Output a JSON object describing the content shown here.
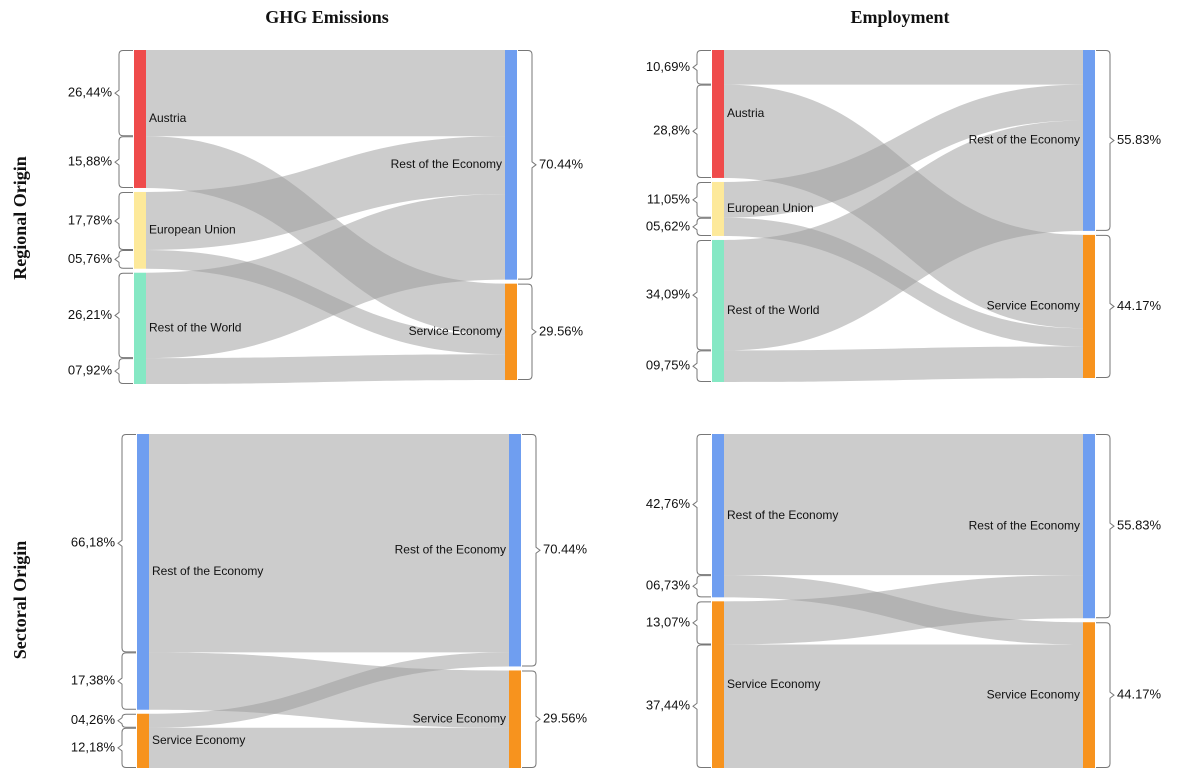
{
  "column_titles": [
    "GHG Emissions",
    "Employment"
  ],
  "row_titles": [
    "Regional Origin",
    "Sectoral Origin"
  ],
  "chart_data": [
    {
      "type": "sankey",
      "left_nodes": [
        "Austria",
        "European Union",
        "Rest of the World"
      ],
      "left_colors": [
        "#ef4b4b",
        "#fde99a",
        "#85e8c4"
      ],
      "right_nodes": [
        "Rest of the Economy",
        "Service Economy"
      ],
      "right_colors": [
        "#6f9ef0",
        "#f7931e"
      ],
      "sources": [
        0,
        0,
        1,
        1,
        2,
        2
      ],
      "targets": [
        0,
        1,
        0,
        1,
        0,
        1
      ],
      "values": [
        26.44,
        15.88,
        17.78,
        5.76,
        26.21,
        7.92
      ],
      "value_labels": [
        "26,44%",
        "15,88%",
        "17,78%",
        "05,76%",
        "26,21%",
        "07,92%"
      ],
      "right_values": [
        70.44,
        29.56
      ],
      "right_value_labels": [
        "70.44%",
        "29.56%"
      ],
      "flow_color": "#999999"
    },
    {
      "type": "sankey",
      "left_nodes": [
        "Austria",
        "European Union",
        "Rest of the World"
      ],
      "left_colors": [
        "#ef4b4b",
        "#fde99a",
        "#85e8c4"
      ],
      "right_nodes": [
        "Rest of the Economy",
        "Service Economy"
      ],
      "right_colors": [
        "#6f9ef0",
        "#f7931e"
      ],
      "sources": [
        0,
        0,
        1,
        1,
        2,
        2
      ],
      "targets": [
        0,
        1,
        0,
        1,
        0,
        1
      ],
      "values": [
        10.69,
        28.8,
        11.05,
        5.62,
        34.09,
        9.75
      ],
      "value_labels": [
        "10,69%",
        "28,8%",
        "11,05%",
        "05,62%",
        "34,09%",
        "09,75%"
      ],
      "right_values": [
        55.83,
        44.17
      ],
      "right_value_labels": [
        "55.83%",
        "44.17%"
      ],
      "flow_color": "#999999"
    },
    {
      "type": "sankey",
      "left_nodes": [
        "Rest of the Economy",
        "Service Economy"
      ],
      "left_colors": [
        "#6f9ef0",
        "#f7931e"
      ],
      "right_nodes": [
        "Rest of the Economy",
        "Service Economy"
      ],
      "right_colors": [
        "#6f9ef0",
        "#f7931e"
      ],
      "sources": [
        0,
        0,
        1,
        1
      ],
      "targets": [
        0,
        1,
        0,
        1
      ],
      "values": [
        66.18,
        17.38,
        4.26,
        12.18
      ],
      "value_labels": [
        "66,18%",
        "17,38%",
        "04,26%",
        "12,18%"
      ],
      "right_values": [
        70.44,
        29.56
      ],
      "right_value_labels": [
        "70.44%",
        "29.56%"
      ],
      "flow_color": "#999999"
    },
    {
      "type": "sankey",
      "left_nodes": [
        "Rest of the Economy",
        "Service Economy"
      ],
      "left_colors": [
        "#6f9ef0",
        "#f7931e"
      ],
      "right_nodes": [
        "Rest of the Economy",
        "Service Economy"
      ],
      "right_colors": [
        "#6f9ef0",
        "#f7931e"
      ],
      "sources": [
        0,
        0,
        1,
        1
      ],
      "targets": [
        0,
        1,
        0,
        1
      ],
      "values": [
        42.76,
        6.73,
        13.07,
        37.44
      ],
      "value_labels": [
        "42,76%",
        "06,73%",
        "13,07%",
        "37,44%"
      ],
      "right_values": [
        55.83,
        44.17
      ],
      "right_value_labels": [
        "55.83%",
        "44.17%"
      ],
      "flow_color": "#999999"
    }
  ]
}
